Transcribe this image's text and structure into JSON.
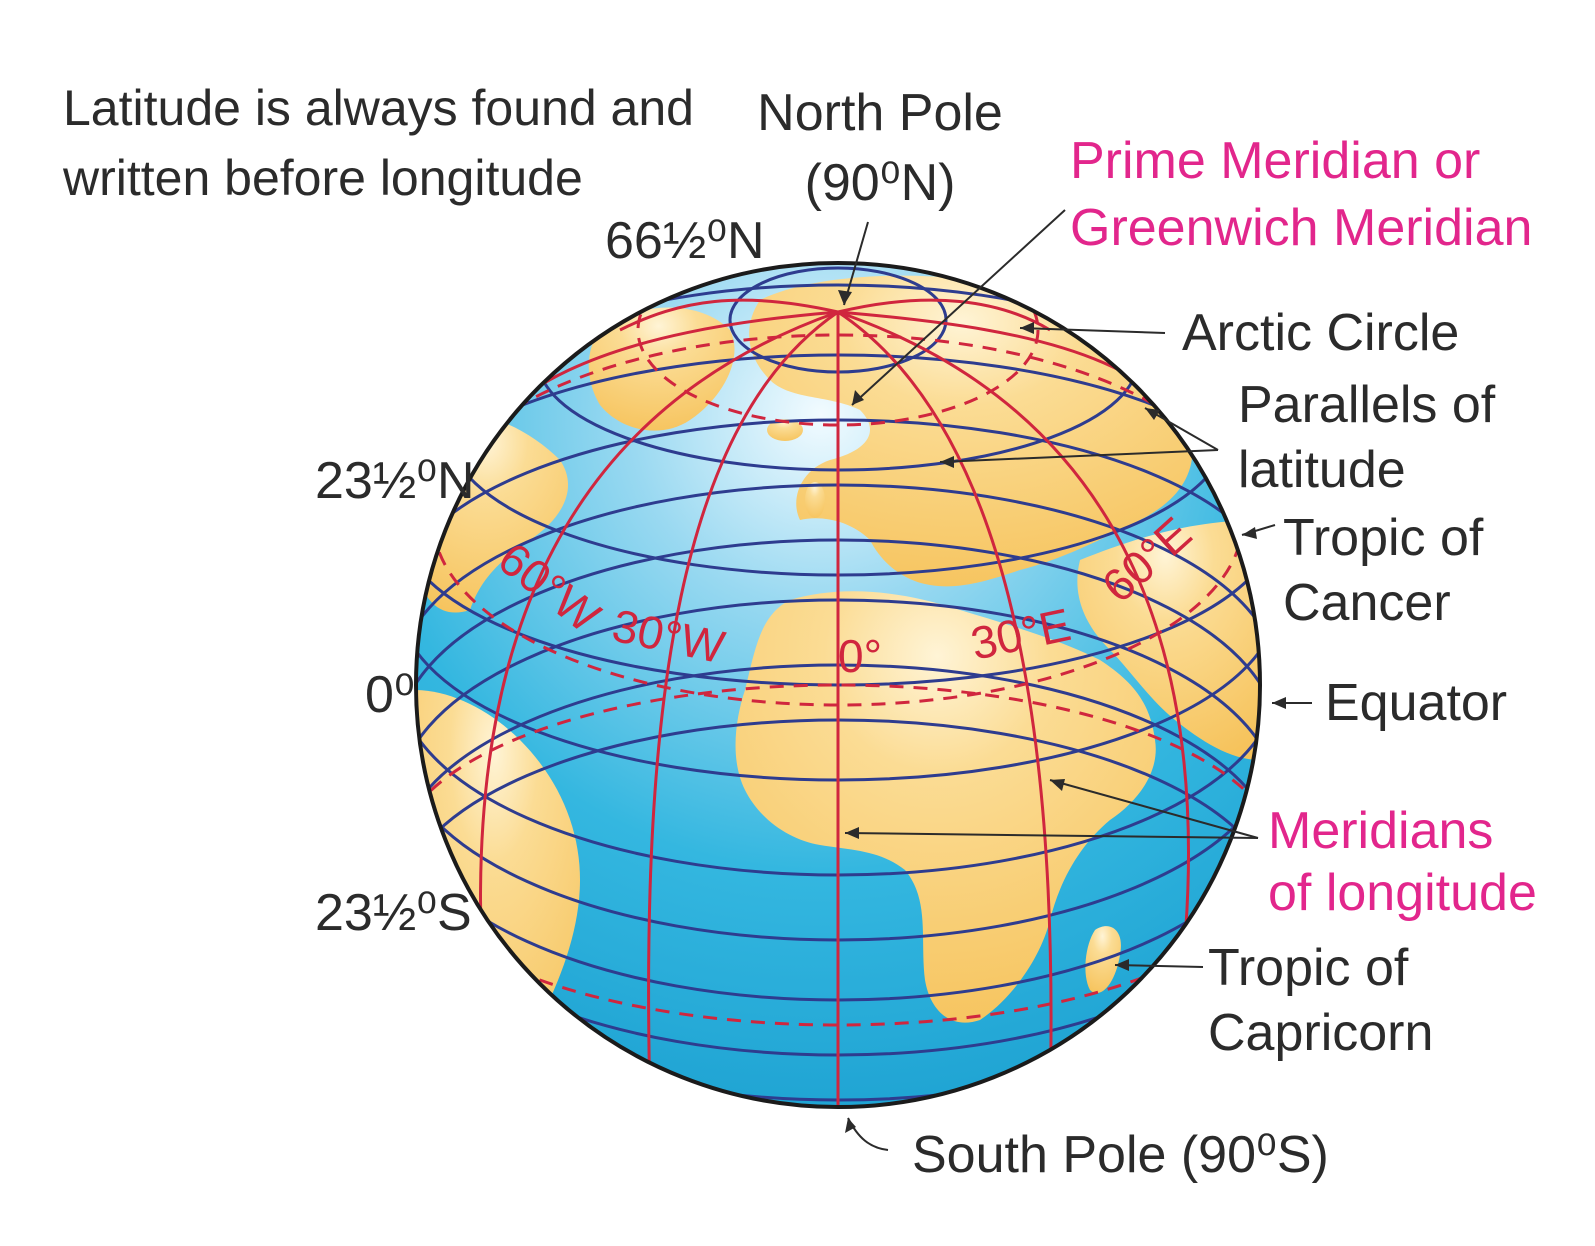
{
  "note": {
    "line1": "Latitude is always found and",
    "line2": "written before longitude"
  },
  "labels": {
    "north_pole": "North Pole",
    "north_pole_coord": "(90⁰N)",
    "prime_meridian_1": "Prime Meridian or",
    "prime_meridian_2": "Greenwich Meridian",
    "arctic_lat": "66½⁰N",
    "arctic_circle": "Arctic Circle",
    "parallels_1": "Parallels of",
    "parallels_2": "latitude",
    "tropic_cancer_lat": "23½⁰N",
    "tropic_cancer_1": "Tropic of",
    "tropic_cancer_2": "Cancer",
    "equator_lat": "0⁰",
    "equator": "Equator",
    "meridians_1": "Meridians",
    "meridians_2": "of longitude",
    "tropic_capricorn_lat": "23½⁰S",
    "tropic_capricorn_1": "Tropic of",
    "tropic_capricorn_2": "Capricorn",
    "south_pole": "South Pole (90⁰S)"
  },
  "meridian_labels": {
    "w60": "60°W",
    "w30": "30°W",
    "zero": "0°",
    "e30": "30°E",
    "e60": "60°E"
  },
  "colors": {
    "ocean": "#2cb3de",
    "land": "#f8c96a",
    "parallel": "#2e3c8f",
    "meridian": "#d0263e",
    "label_pink": "#e2268c",
    "text": "#2b2b2b"
  }
}
